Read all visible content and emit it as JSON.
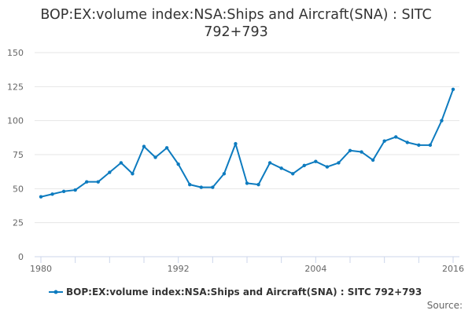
{
  "chart_data": {
    "type": "line",
    "title": "BOP:EX:volume index:NSA:Ships and Aircraft(SNA) : SITC 792+793",
    "xlabel": "",
    "ylabel": "",
    "x": [
      1980,
      1981,
      1982,
      1983,
      1984,
      1985,
      1986,
      1987,
      1988,
      1989,
      1990,
      1991,
      1992,
      1993,
      1994,
      1995,
      1996,
      1997,
      1998,
      1999,
      2000,
      2001,
      2002,
      2003,
      2004,
      2005,
      2006,
      2007,
      2008,
      2009,
      2010,
      2011,
      2012,
      2013,
      2014,
      2015,
      2016
    ],
    "series": [
      {
        "name": "BOP:EX:volume index:NSA:Ships and Aircraft(SNA) : SITC 792+793",
        "color": "#0d7bbf",
        "values": [
          44,
          46,
          48,
          49,
          55,
          55,
          62,
          69,
          61,
          81,
          73,
          80,
          68,
          53,
          51,
          51,
          61,
          83,
          54,
          53,
          69,
          65,
          61,
          67,
          70,
          66,
          69,
          78,
          77,
          71,
          85,
          88,
          84,
          82,
          82,
          100,
          123
        ]
      }
    ],
    "ylim": [
      0,
      150
    ],
    "xlim": [
      1980,
      2016
    ],
    "y_ticks": [
      "0",
      "25",
      "50",
      "75",
      "100",
      "125",
      "150"
    ],
    "x_tick_labels": [
      "1980",
      "1992",
      "2004",
      "2016"
    ],
    "grid": true,
    "legend": "bottom",
    "source_label": "Source:"
  }
}
